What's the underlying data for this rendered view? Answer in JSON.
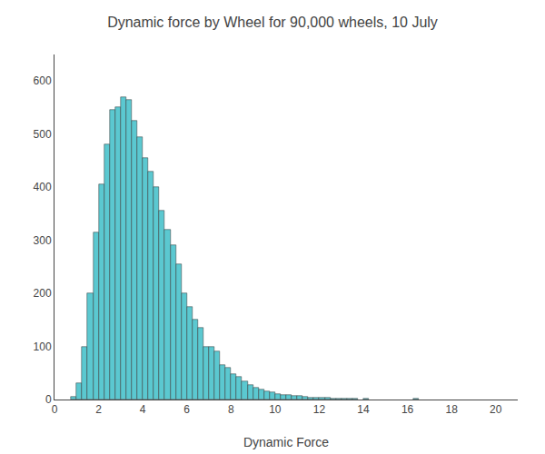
{
  "chart_data": {
    "type": "bar",
    "title": "Dynamic force by Wheel for 90,000 wheels, 10 July",
    "xlabel": "Dynamic Force",
    "x": [
      0.75,
      1.0,
      1.25,
      1.5,
      1.75,
      2.0,
      2.25,
      2.5,
      2.75,
      3.0,
      3.25,
      3.5,
      3.75,
      4.0,
      4.25,
      4.5,
      4.75,
      5.0,
      5.25,
      5.5,
      5.75,
      6.0,
      6.25,
      6.5,
      6.75,
      7.0,
      7.25,
      7.5,
      7.75,
      8.0,
      8.25,
      8.5,
      8.75,
      9.0,
      9.25,
      9.5,
      9.75,
      10.0,
      10.25,
      10.5,
      10.75,
      11.0,
      11.25,
      11.5,
      11.75,
      12.0,
      12.25,
      12.5,
      12.75,
      13.0,
      13.25,
      13.5,
      14.0,
      16.25
    ],
    "values": [
      5,
      30,
      100,
      200,
      315,
      405,
      480,
      545,
      550,
      570,
      565,
      525,
      495,
      455,
      430,
      400,
      355,
      320,
      290,
      255,
      200,
      175,
      150,
      135,
      100,
      100,
      90,
      65,
      60,
      48,
      42,
      35,
      28,
      22,
      18,
      15,
      13,
      11,
      9,
      8,
      7,
      6,
      5,
      4,
      4,
      3,
      3,
      2,
      2,
      2,
      1,
      1,
      1,
      1
    ],
    "color": "#5BC8D0",
    "xlim": [
      0,
      21
    ],
    "xticks": [
      0,
      2,
      4,
      6,
      8,
      10,
      12,
      14,
      16,
      18,
      20
    ],
    "ylim": [
      0,
      650
    ],
    "yticks": [
      0,
      100,
      200,
      300,
      400,
      500,
      600
    ],
    "grid": false
  }
}
